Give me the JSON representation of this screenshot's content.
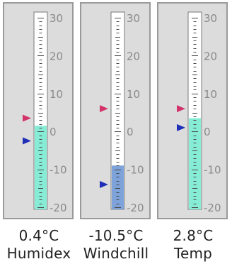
{
  "scale": {
    "min": -20,
    "max": 30,
    "tick_labels": [
      "30",
      "20",
      "10",
      "0",
      "-10",
      "-20"
    ]
  },
  "colors": {
    "fill_warm": "#86ecd6",
    "fill_cold": "#7ea2da",
    "marker_high": "#d2336b",
    "marker_low": "#1f2fb8"
  },
  "gauges": [
    {
      "reading": "0.4°C",
      "name": "Humidex",
      "value": 0.4,
      "fill_level": 1.5,
      "fill_color": "warm",
      "marker_high": 3.5,
      "marker_low": -2.5
    },
    {
      "reading": "-10.5°C",
      "name": "Windchill",
      "value": -10.5,
      "fill_level": -9,
      "fill_color": "cold",
      "marker_high": 6,
      "marker_low": -14
    },
    {
      "reading": "2.8°C",
      "name": "Temp",
      "value": 2.8,
      "fill_level": 3.5,
      "fill_color": "warm",
      "marker_high": 6,
      "marker_low": 1
    }
  ]
}
